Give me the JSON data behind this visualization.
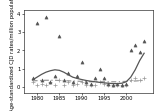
{
  "ylabel": "Age-standardized CJD rates/million population",
  "xlim": [
    1977,
    2006
  ],
  "ylim": [
    -0.3,
    4.2
  ],
  "yticks": [
    0,
    1,
    2,
    3,
    4
  ],
  "xticks": [
    1980,
    1985,
    1990,
    1995,
    2000
  ],
  "endemic_scatter_x": [
    1979,
    1980,
    1981,
    1982,
    1983,
    1984,
    1985,
    1986,
    1987,
    1988,
    1989,
    1990,
    1991,
    1992,
    1993,
    1994,
    1995,
    1996,
    1997,
    1998,
    1999,
    2000,
    2001,
    2002,
    2003,
    2004
  ],
  "endemic_scatter_y": [
    0.5,
    3.5,
    0.4,
    3.8,
    0.3,
    0.6,
    2.8,
    0.4,
    0.8,
    0.3,
    0.6,
    1.4,
    0.3,
    0.2,
    0.5,
    1.0,
    0.5,
    0.2,
    0.15,
    0.2,
    0.15,
    0.2,
    2.0,
    2.3,
    1.9,
    2.5
  ],
  "nonendemic_scatter_x": [
    1979,
    1980,
    1981,
    1982,
    1983,
    1984,
    1985,
    1986,
    1987,
    1988,
    1989,
    1990,
    1991,
    1992,
    1993,
    1994,
    1995,
    1996,
    1997,
    1998,
    1999,
    2000,
    2001,
    2002,
    2003,
    2004
  ],
  "nonendemic_scatter_y": [
    0.3,
    0.1,
    0.2,
    0.1,
    0.3,
    0.1,
    0.4,
    0.1,
    0.3,
    0.1,
    0.2,
    0.3,
    0.15,
    0.1,
    0.1,
    0.3,
    0.2,
    0.1,
    0.1,
    0.1,
    0.1,
    0.15,
    0.4,
    0.5,
    0.4,
    0.5
  ],
  "endemic_smooth_x": [
    1979,
    1980,
    1981,
    1982,
    1983,
    1984,
    1985,
    1986,
    1987,
    1988,
    1989,
    1990,
    1991,
    1992,
    1993,
    1994,
    1995,
    1996,
    1997,
    1998,
    1999,
    2000,
    2001,
    2002,
    2003,
    2004
  ],
  "endemic_smooth_y": [
    0.4,
    0.55,
    0.7,
    0.82,
    0.9,
    0.95,
    0.92,
    0.82,
    0.68,
    0.55,
    0.48,
    0.42,
    0.37,
    0.33,
    0.3,
    0.27,
    0.24,
    0.22,
    0.2,
    0.2,
    0.22,
    0.3,
    0.55,
    0.95,
    1.45,
    1.85
  ],
  "nonendemic_smooth_x": [
    1979,
    1980,
    1981,
    1982,
    1983,
    1984,
    1985,
    1986,
    1987,
    1988,
    1989,
    1990,
    1991,
    1992,
    1993,
    1994,
    1995,
    1996,
    1997,
    1998,
    1999,
    2000,
    2001,
    2002,
    2003,
    2004
  ],
  "nonendemic_smooth_y": [
    0.35,
    0.36,
    0.37,
    0.38,
    0.38,
    0.38,
    0.37,
    0.36,
    0.35,
    0.34,
    0.33,
    0.32,
    0.31,
    0.3,
    0.3,
    0.3,
    0.3,
    0.3,
    0.3,
    0.3,
    0.31,
    0.32,
    0.33,
    0.34,
    0.36,
    0.38
  ],
  "endemic_color": "#555555",
  "nonendemic_color": "#999999",
  "scatter_endemic_marker": "^",
  "scatter_nonendemic_marker": "+",
  "background_color": "#ffffff",
  "ylabel_fontsize": 3.8,
  "tick_fontsize": 3.8
}
